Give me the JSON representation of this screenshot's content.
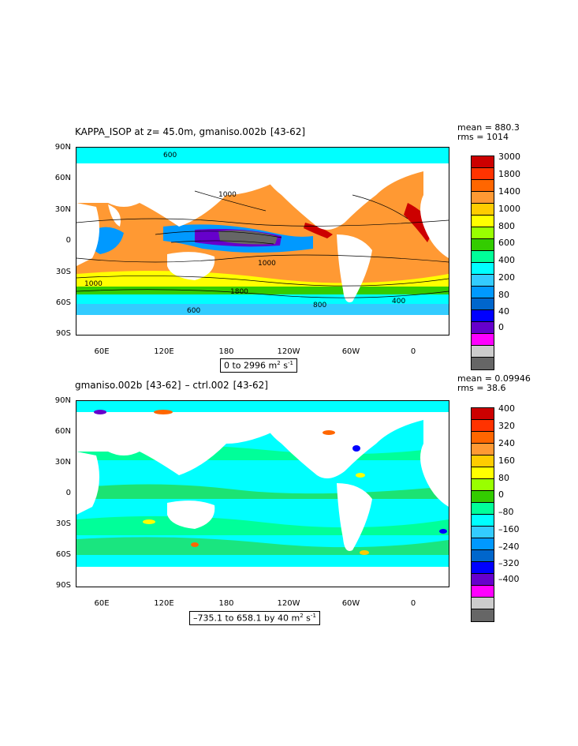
{
  "top_panel": {
    "title": "KAPPA_ISOP at z=  45.0m, gmaniso.002b  [43-62]",
    "mean": "mean = 880.3",
    "rms": "rms = 1014",
    "range_text": "0 to 2996 m",
    "range_unit_sup1": "2",
    "range_unit_mid": " s",
    "range_unit_sup2": "-1",
    "lat_labels": [
      "90N",
      "60N",
      "30N",
      "0",
      "30S",
      "60S",
      "90S"
    ],
    "lon_labels": [
      "60E",
      "120E",
      "180",
      "120W",
      "60W",
      "0"
    ],
    "colorbar_labels": [
      "3000",
      "1800",
      "1400",
      "1000",
      "800",
      "600",
      "400",
      "200",
      "80",
      "40",
      "0"
    ],
    "contour_labels": [
      "1000",
      "1000",
      "600",
      "1000",
      "1800",
      "400",
      "800",
      "600"
    ]
  },
  "bottom_panel": {
    "title": "gmaniso.002b  [43-62]  – ctrl.002  [43-62]",
    "mean": "mean = 0.09946",
    "rms": "rms = 38.6",
    "range_text": "–735.1 to 658.1 by 40 m",
    "range_unit_sup1": "2",
    "range_unit_mid": " s",
    "range_unit_sup2": "-1",
    "lat_labels": [
      "90N",
      "60N",
      "30N",
      "0",
      "30S",
      "60S",
      "90S"
    ],
    "lon_labels": [
      "60E",
      "120E",
      "180",
      "120W",
      "60W",
      "0"
    ],
    "colorbar_labels": [
      "400",
      "320",
      "240",
      "160",
      "80",
      "0",
      "–80",
      "–160",
      "–240",
      "–320",
      "–400"
    ]
  },
  "colors": {
    "top_scale": [
      "#cc0000",
      "#ff3300",
      "#ff6600",
      "#ff9933",
      "#ffcc00",
      "#ffff00",
      "#99ff00",
      "#33cc00",
      "#00ff99",
      "#00ffff",
      "#33ccff",
      "#0099ff",
      "#0066cc",
      "#0000ff",
      "#6600cc",
      "#ff00ff",
      "#cccccc",
      "#666666"
    ],
    "bottom_scale": [
      "#cc0000",
      "#ff3300",
      "#ff6600",
      "#ff9933",
      "#ffcc00",
      "#ffff00",
      "#99ff00",
      "#33cc00",
      "#00ff99",
      "#00ffff",
      "#33ccff",
      "#0099ff",
      "#0066cc",
      "#0000ff",
      "#6600cc",
      "#ff00ff",
      "#cccccc",
      "#666666"
    ],
    "land": "#ffffff"
  }
}
